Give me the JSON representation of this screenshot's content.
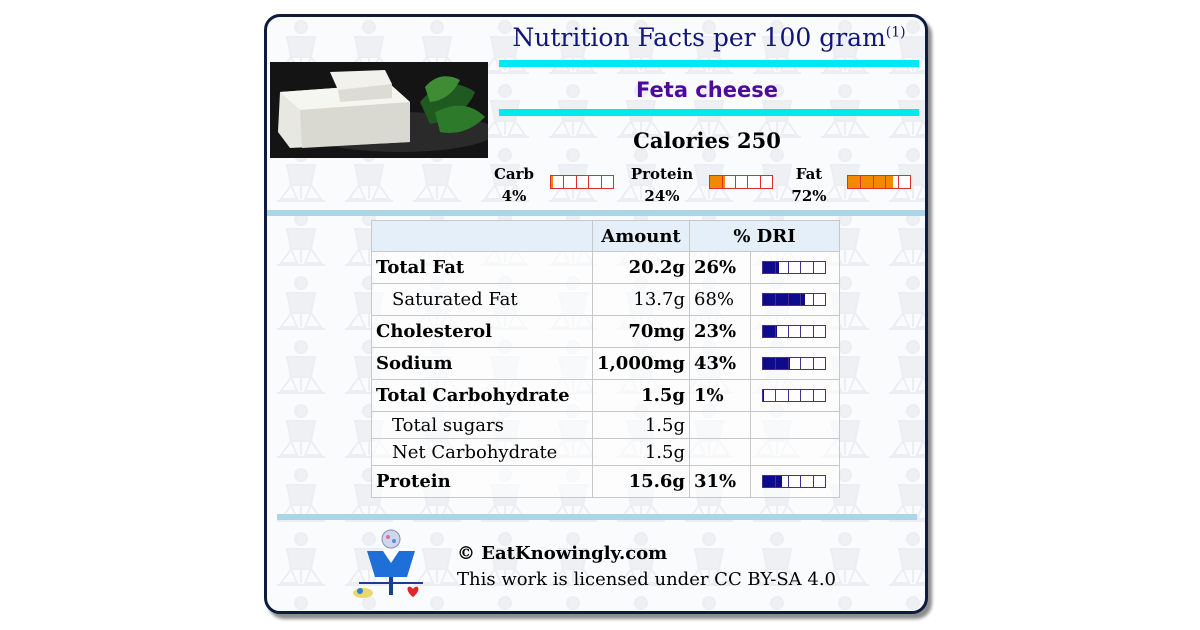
{
  "header": {
    "title": "Nutrition Facts per 100 gram",
    "footnote_ref": "(1)"
  },
  "food": {
    "name": "Feta cheese",
    "photo_icon": "feta-cheese-photo"
  },
  "calories": {
    "label": "Calories 250"
  },
  "macros": [
    {
      "name": "Carb",
      "pct_label": "4%",
      "fraction": 0.04
    },
    {
      "name": "Protein",
      "pct_label": "24%",
      "fraction": 0.24
    },
    {
      "name": "Fat",
      "pct_label": "72%",
      "fraction": 0.72
    }
  ],
  "table": {
    "headers": {
      "nutrient": "",
      "amount": "Amount",
      "dri": "% DRI"
    },
    "rows": [
      {
        "name": "Total Fat",
        "amount": "20.2g",
        "dri": "26%",
        "dri_fraction": 0.26,
        "bold": true,
        "sub": false
      },
      {
        "name": "Saturated Fat",
        "amount": "13.7g",
        "dri": "68%",
        "dri_fraction": 0.68,
        "bold": false,
        "sub": true
      },
      {
        "name": "Cholesterol",
        "amount": "70mg",
        "dri": "23%",
        "dri_fraction": 0.23,
        "bold": true,
        "sub": false
      },
      {
        "name": "Sodium",
        "amount": "1,000mg",
        "dri": "43%",
        "dri_fraction": 0.43,
        "bold": true,
        "sub": false
      },
      {
        "name": "Total Carbohydrate",
        "amount": "1.5g",
        "dri": "1%",
        "dri_fraction": 0.01,
        "bold": true,
        "sub": false
      },
      {
        "name": "Total sugars",
        "amount": "1.5g",
        "dri": "",
        "dri_fraction": null,
        "bold": false,
        "sub": true
      },
      {
        "name": "Net Carbohydrate",
        "amount": "1.5g",
        "dri": "",
        "dri_fraction": null,
        "bold": false,
        "sub": true
      },
      {
        "name": "Protein",
        "amount": "15.6g",
        "dri": "31%",
        "dri_fraction": 0.31,
        "bold": true,
        "sub": false
      }
    ]
  },
  "footer": {
    "copyright": "© EatKnowingly.com",
    "license": "This work is licensed under CC BY-SA 4.0",
    "logo_icon": "eatknowingly-logo-icon"
  },
  "colors": {
    "title": "#10167a",
    "food_name": "#4e0a9c",
    "cyan_rule": "#00e9f0",
    "separator": "#abd6e7",
    "macro_fill": "#f28a00",
    "dri_fill": "#0b0b8c"
  }
}
